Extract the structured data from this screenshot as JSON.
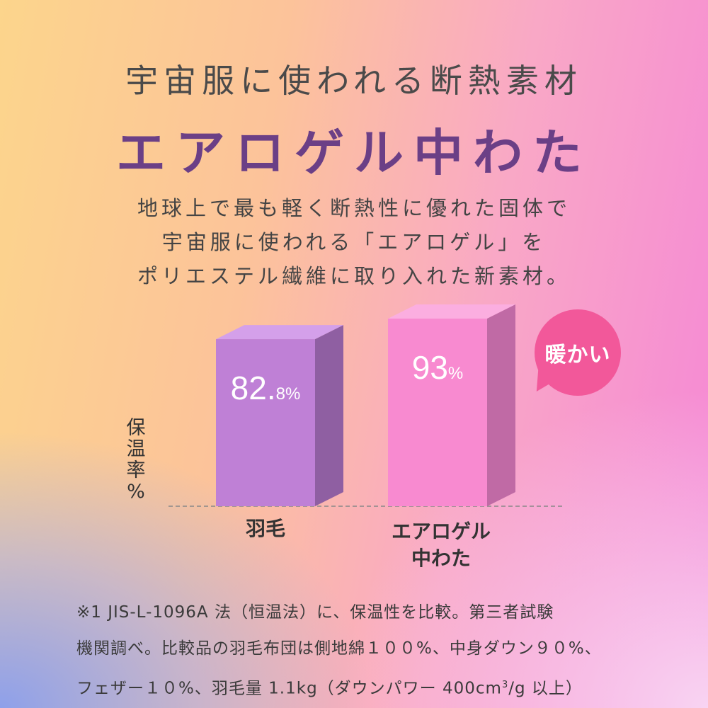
{
  "headline": {
    "subtitle": "宇宙服に使われる断熱素材",
    "title": "エアロゲル中わた"
  },
  "intro": [
    "地球上で最も軽く断熱性に優れた固体で",
    "宇宙服に使われる「エアロゲル」を",
    "ポリエステル繊維に取り入れた新素材。"
  ],
  "badge": "暖かい",
  "chart_data": {
    "type": "bar",
    "ylabel": "保温率%",
    "ylabel_chars": [
      "保",
      "温",
      "率",
      "%"
    ],
    "categories": [
      "羽毛",
      "エアロゲル中わた"
    ],
    "category_lines": [
      [
        "羽毛"
      ],
      [
        "エアロゲル",
        "中わた"
      ]
    ],
    "values": [
      82.8,
      93
    ],
    "value_labels": [
      {
        "main": "82.",
        "small": "8%"
      },
      {
        "main": "93",
        "small": "%"
      }
    ],
    "colors": [
      {
        "front": "#bf80d6",
        "side": "#8f5fa2",
        "top": "#d4a0ea"
      },
      {
        "front": "#f88ad0",
        "side": "#c06aa5",
        "top": "#fbaee0"
      }
    ]
  },
  "note": {
    "line1": "※1 JIS-L-1096A 法（恒温法）に、保温性を比較。第三者試験",
    "line2": "機関調べ。比較品の羽毛布団は側地綿１００%、中身ダウン９０%、",
    "line3_a": "フェザー１０%、羽毛量 1.1kg（ダウンパワー 400cm",
    "line3_sup": "3",
    "line3_b": "/g 以上）"
  }
}
